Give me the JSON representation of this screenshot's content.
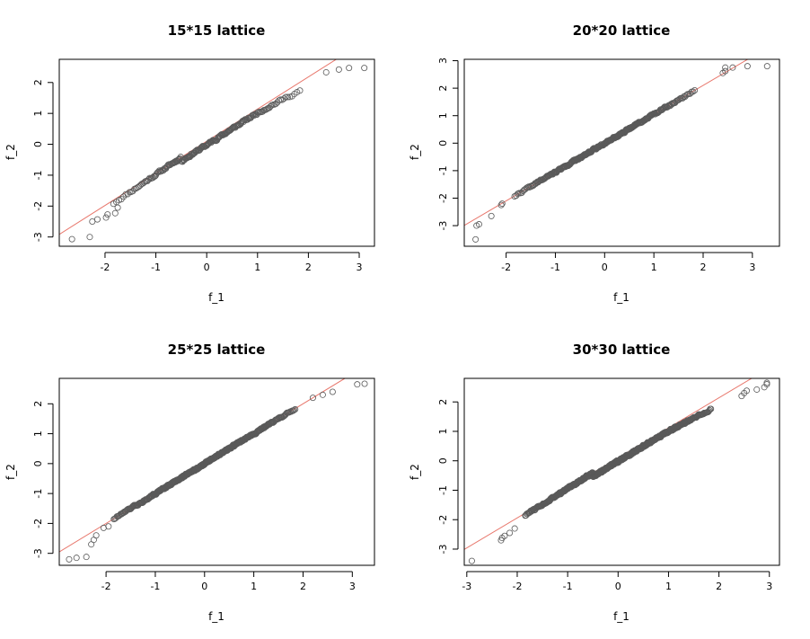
{
  "figure": {
    "colors": {
      "point": "#5a5a5a",
      "ref_line": "#e8776c",
      "axis": "#000000"
    }
  },
  "chart_data": [
    {
      "type": "scatter",
      "title": "15*15 lattice",
      "xlabel": "f_1",
      "ylabel": "f_2",
      "xlim": [
        -2.9,
        3.3
      ],
      "ylim": [
        -3.3,
        2.75
      ],
      "xticks": [
        -2,
        -1,
        0,
        1,
        2,
        3
      ],
      "yticks": [
        -3,
        -2,
        -1,
        0,
        1,
        2
      ],
      "ref_line": {
        "slope": 1.04,
        "intercept": 0.1
      },
      "points_spec": {
        "n": 225,
        "seed": 11,
        "amp": 0.07,
        "warp": -0.5,
        "warp2": 0.5
      },
      "anchors": [
        [
          -2.65,
          -3.07
        ],
        [
          -2.3,
          -3.0
        ],
        [
          -2.25,
          -2.5
        ],
        [
          -2.15,
          -2.43
        ],
        [
          -1.98,
          -2.37
        ],
        [
          -1.95,
          -2.27
        ],
        [
          -1.8,
          -2.23
        ],
        [
          -1.75,
          -2.05
        ],
        [
          2.35,
          2.33
        ],
        [
          2.6,
          2.42
        ],
        [
          2.8,
          2.47
        ],
        [
          3.1,
          2.47
        ]
      ]
    },
    {
      "type": "scatter",
      "title": "20*20 lattice",
      "xlabel": "f_1",
      "ylabel": "f_2",
      "xlim": [
        -2.85,
        3.55
      ],
      "ylim": [
        -3.75,
        3.05
      ],
      "xticks": [
        -2,
        -1,
        0,
        1,
        2,
        3
      ],
      "yticks": [
        -3,
        -2,
        -1,
        0,
        1,
        2,
        3
      ],
      "ref_line": {
        "slope": 1.05,
        "intercept": 0.0
      },
      "points_spec": {
        "n": 400,
        "seed": 22,
        "amp": 0.06,
        "warp": 0.0,
        "warp2": 0.0
      },
      "anchors": [
        [
          -2.62,
          -3.5
        ],
        [
          -2.6,
          -3.0
        ],
        [
          -2.55,
          -2.95
        ],
        [
          -2.3,
          -2.65
        ],
        [
          -2.1,
          -2.25
        ],
        [
          -2.08,
          -2.2
        ],
        [
          2.4,
          2.55
        ],
        [
          2.45,
          2.62
        ],
        [
          2.45,
          2.75
        ],
        [
          2.6,
          2.75
        ],
        [
          2.9,
          2.8
        ],
        [
          3.3,
          2.8
        ]
      ]
    },
    {
      "type": "scatter",
      "title": "25*25 lattice",
      "xlabel": "f_1",
      "ylabel": "f_2",
      "xlim": [
        -2.95,
        3.45
      ],
      "ylim": [
        -3.4,
        2.85
      ],
      "xticks": [
        -2,
        -1,
        0,
        1,
        2,
        3
      ],
      "yticks": [
        -3,
        -2,
        -1,
        0,
        1,
        2
      ],
      "ref_line": {
        "slope": 1.0,
        "intercept": 0.0
      },
      "points_spec": {
        "n": 625,
        "seed": 33,
        "amp": 0.06,
        "warp": 0.0,
        "warp2": 0.0
      },
      "anchors": [
        [
          -2.75,
          -3.2
        ],
        [
          -2.6,
          -3.15
        ],
        [
          -2.4,
          -3.12
        ],
        [
          -2.3,
          -2.7
        ],
        [
          -2.25,
          -2.55
        ],
        [
          -2.2,
          -2.4
        ],
        [
          -2.05,
          -2.15
        ],
        [
          -1.95,
          -2.1
        ],
        [
          2.2,
          2.2
        ],
        [
          2.4,
          2.3
        ],
        [
          2.6,
          2.4
        ],
        [
          3.1,
          2.65
        ],
        [
          3.25,
          2.67
        ]
      ]
    },
    {
      "type": "scatter",
      "title": "30*30 lattice",
      "xlabel": "f_1",
      "ylabel": "f_2",
      "xlim": [
        -3.05,
        3.2
      ],
      "ylim": [
        -3.55,
        2.8
      ],
      "xticks": [
        -3,
        -2,
        -1,
        0,
        1,
        2,
        3
      ],
      "yticks": [
        -3,
        -2,
        -1,
        0,
        1,
        2
      ],
      "ref_line": {
        "slope": 1.02,
        "intercept": 0.1
      },
      "points_spec": {
        "n": 900,
        "seed": 44,
        "amp": 0.06,
        "warp": -0.35,
        "warp2": 0.35
      },
      "anchors": [
        [
          -2.9,
          -3.4
        ],
        [
          -2.3,
          -2.62
        ],
        [
          -2.25,
          -2.55
        ],
        [
          -2.32,
          -2.7
        ],
        [
          -2.15,
          -2.45
        ],
        [
          -2.05,
          -2.3
        ],
        [
          2.45,
          2.2
        ],
        [
          2.5,
          2.3
        ],
        [
          2.55,
          2.38
        ],
        [
          2.75,
          2.42
        ],
        [
          2.9,
          2.5
        ],
        [
          2.95,
          2.6
        ],
        [
          2.95,
          2.65
        ]
      ]
    }
  ]
}
